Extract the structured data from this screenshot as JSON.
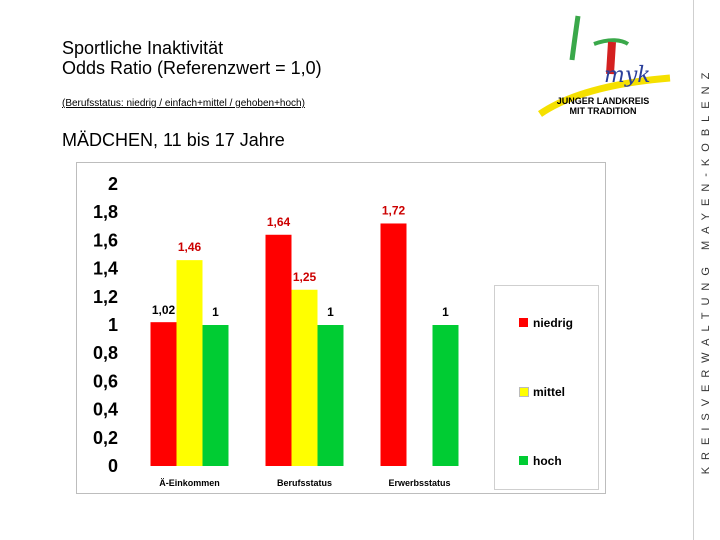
{
  "header": {
    "title_line1": "Sportliche Inaktivität",
    "title_line2": "Odds Ratio (Referenzwert = 1,0)",
    "subtitle": "(Berufsstatus: niedrig  /  einfach+mittel  /  gehoben+hoch)",
    "section": "MÄDCHEN, 11 bis 17 Jahre"
  },
  "logo": {
    "text": "myk",
    "caption_line1": "JUNGER LANDKREIS",
    "caption_line2": "MIT TRADITION"
  },
  "sidebar": {
    "text": "KREISVERWALTUNG MAYEN-KOBLENZ"
  },
  "colors": {
    "niedrig": "#ff0000",
    "mittel": "#ffff00",
    "hoch": "#00cc33",
    "label": "#cc0000"
  },
  "chart_data": {
    "type": "bar",
    "categories": [
      "Ä-Einkommen",
      "Berufsstatus",
      "Erwerbsstatus"
    ],
    "series": [
      {
        "name": "niedrig",
        "values": [
          1.02,
          1.64,
          1.72
        ],
        "labels": [
          "1,02",
          "1,64",
          "1,72"
        ]
      },
      {
        "name": "mittel",
        "values": [
          1.46,
          1.25,
          null
        ],
        "labels": [
          "1,46",
          "1,25",
          ""
        ]
      },
      {
        "name": "hoch",
        "values": [
          1,
          1,
          1
        ],
        "labels": [
          "1",
          "1",
          "1"
        ]
      }
    ],
    "ylim": [
      0,
      2
    ],
    "yticks": [
      "0",
      "0,2",
      "0,4",
      "0,6",
      "0,8",
      "1",
      "1,2",
      "1,4",
      "1,6",
      "1,8",
      "2"
    ],
    "legend_position": "right",
    "grid": false
  }
}
